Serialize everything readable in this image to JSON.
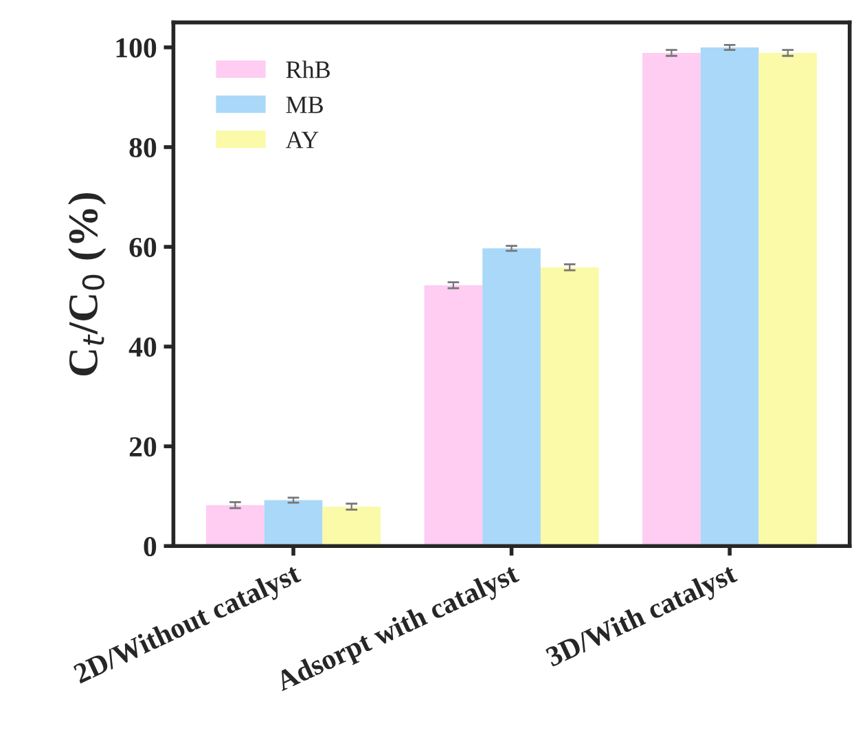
{
  "chart_data": {
    "type": "bar",
    "ylabel": "C$_{t}$/C$_{0}$ (%)",
    "categories": [
      "2D/Without catalyst",
      "Adsorpt with catalyst",
      "3D/With catalyst"
    ],
    "series": [
      {
        "name": "RhB",
        "color": "#ffccf2",
        "values": [
          8.2,
          52.3,
          98.9
        ],
        "errors": [
          0.6,
          0.6,
          0.6
        ]
      },
      {
        "name": "MB",
        "color": "#aad8f8",
        "values": [
          9.2,
          59.7,
          100
        ],
        "errors": [
          0.5,
          0.5,
          0.5
        ]
      },
      {
        "name": "AY",
        "color": "#fafaa8",
        "values": [
          7.9,
          55.9,
          98.9
        ],
        "errors": [
          0.6,
          0.6,
          0.6
        ]
      }
    ],
    "ylim": [
      0,
      105
    ],
    "yticks": [
      0,
      20,
      40,
      60,
      80,
      100
    ],
    "legend": "top left",
    "grid": false
  }
}
